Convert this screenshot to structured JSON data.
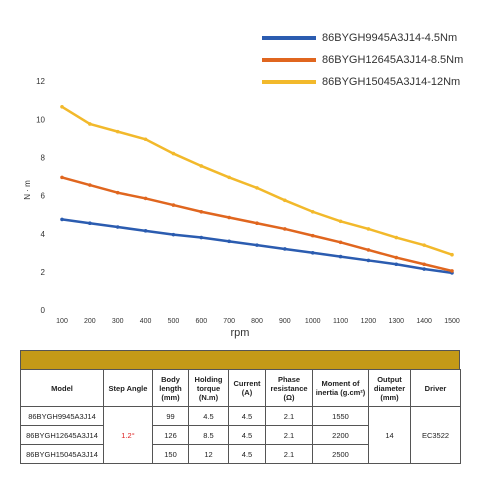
{
  "chart_data": {
    "type": "line",
    "x_label": "rpm",
    "y_label": "N · m",
    "x": [
      100,
      200,
      300,
      400,
      500,
      600,
      700,
      800,
      900,
      1000,
      1100,
      1200,
      1300,
      1400,
      1500
    ],
    "xlim": [
      100,
      1500
    ],
    "xticks": [
      100,
      200,
      300,
      400,
      500,
      600,
      700,
      800,
      900,
      1000,
      1100,
      1200,
      1300,
      1400,
      1500
    ],
    "ylim": [
      0,
      12
    ],
    "yticks": [
      0,
      2,
      4,
      6,
      8,
      10,
      12
    ],
    "grid": false,
    "legend": "top-right",
    "series": [
      {
        "name": "86BYGH9945A3J14-4.5Nm",
        "color": "#2b5cb0",
        "values": [
          4.8,
          4.6,
          4.4,
          4.2,
          4.0,
          3.85,
          3.65,
          3.45,
          3.25,
          3.05,
          2.85,
          2.65,
          2.45,
          2.2,
          2.0
        ]
      },
      {
        "name": "86BYGH12645A3J14-8.5Nm",
        "color": "#e0661f",
        "values": [
          7.0,
          6.6,
          6.2,
          5.9,
          5.55,
          5.2,
          4.9,
          4.6,
          4.3,
          3.95,
          3.6,
          3.2,
          2.8,
          2.45,
          2.1
        ]
      },
      {
        "name": "86BYGH15045A3J14-12Nm",
        "color": "#f2b92b",
        "values": [
          10.7,
          9.8,
          9.4,
          9.0,
          8.25,
          7.6,
          7.0,
          6.45,
          5.8,
          5.2,
          4.7,
          4.3,
          3.85,
          3.45,
          2.95
        ]
      }
    ]
  },
  "table": {
    "header": [
      "Model",
      "Step Angle",
      "Body length (mm)",
      "Holding torque (N.m)",
      "Current (A)",
      "Phase resistance (Ω)",
      "Moment of inertia (g.cm²)",
      "Output diameter (mm)",
      "Driver"
    ],
    "rows": [
      [
        "86BYGH9945A3J14",
        "99",
        "4.5",
        "4.5",
        "2.1",
        "1550"
      ],
      [
        "86BYGH12645A3J14",
        "126",
        "8.5",
        "4.5",
        "2.1",
        "2200"
      ],
      [
        "86BYGH15045A3J14",
        "150",
        "12",
        "4.5",
        "2.1",
        "2500"
      ]
    ],
    "step_angle": "1.2°",
    "output_diameter": "14",
    "driver": "EC3522"
  }
}
